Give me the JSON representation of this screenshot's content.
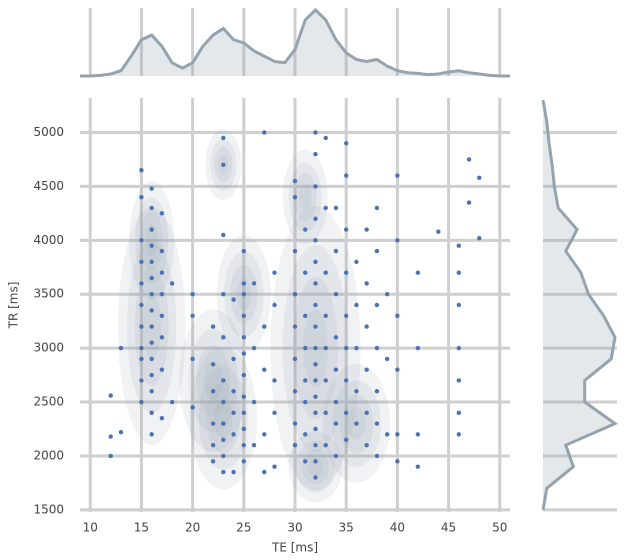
{
  "chart_data": {
    "type": "jointplot",
    "xlabel": "TE [ms]",
    "ylabel": "TR [ms]",
    "xlim": [
      9,
      51
    ],
    "ylim": [
      1480,
      5320
    ],
    "xticks": [
      10,
      15,
      20,
      25,
      30,
      35,
      40,
      45,
      50
    ],
    "yticks": [
      1500,
      2000,
      2500,
      3000,
      3500,
      4000,
      4500,
      5000
    ],
    "grid": true,
    "point_color": "#4c72b0",
    "kde_color": "#95a3ae",
    "x": [
      12,
      12,
      12,
      13,
      13,
      15,
      15,
      15,
      15,
      15,
      15,
      15,
      15,
      15,
      15,
      15,
      16,
      16,
      16,
      16,
      16,
      16,
      16,
      16,
      16,
      16,
      16,
      16,
      16,
      16,
      16,
      17,
      17,
      17,
      17,
      17,
      17,
      17,
      17,
      18,
      18,
      20,
      20,
      20,
      20,
      22,
      22,
      22,
      22,
      22,
      22,
      23,
      23,
      23,
      23,
      23,
      23,
      23,
      23,
      23,
      23,
      23,
      24,
      24,
      24,
      24,
      24,
      24,
      25,
      25,
      25,
      25,
      25,
      25,
      25,
      25,
      25,
      25,
      25,
      25,
      26,
      26,
      26,
      26,
      27,
      27,
      27,
      27,
      27,
      28,
      28,
      28,
      28,
      28,
      30,
      30,
      30,
      30,
      30,
      30,
      30,
      30,
      30,
      31,
      31,
      31,
      31,
      31,
      31,
      31,
      31,
      32,
      32,
      32,
      32,
      32,
      32,
      32,
      32,
      32,
      32,
      32,
      32,
      32,
      32,
      32,
      32,
      32,
      32,
      33,
      33,
      33,
      33,
      33,
      33,
      33,
      33,
      34,
      34,
      34,
      34,
      34,
      34,
      34,
      34,
      35,
      35,
      35,
      35,
      35,
      35,
      35,
      35,
      35,
      36,
      36,
      36,
      36,
      36,
      37,
      37,
      37,
      37,
      37,
      37,
      38,
      38,
      38,
      38,
      38,
      38,
      38,
      39,
      39,
      39,
      40,
      40,
      40,
      40,
      40,
      40,
      42,
      42,
      42,
      42,
      44,
      46,
      46,
      46,
      46,
      46,
      46,
      46,
      47,
      47,
      48,
      48
    ],
    "y": [
      2000,
      2180,
      2560,
      2220,
      3000,
      4650,
      4400,
      4000,
      3800,
      3600,
      3400,
      3200,
      3000,
      2900,
      2700,
      2500,
      4480,
      4300,
      4100,
      3950,
      3800,
      3650,
      3500,
      3350,
      3200,
      3050,
      2900,
      2750,
      2600,
      2400,
      2200,
      4250,
      3900,
      3700,
      3500,
      3300,
      3100,
      2800,
      2350,
      3600,
      2500,
      3500,
      3300,
      2900,
      2450,
      2300,
      2100,
      1950,
      2600,
      2850,
      3200,
      4950,
      4700,
      4050,
      3500,
      3100,
      2700,
      2500,
      2300,
      2150,
      2000,
      1850,
      2400,
      2200,
      2600,
      2900,
      3450,
      1850,
      3900,
      3600,
      3500,
      3300,
      3100,
      2950,
      2750,
      2550,
      2400,
      2250,
      2100,
      1950,
      3600,
      3000,
      2500,
      2100,
      5000,
      3200,
      2800,
      2200,
      1850,
      3700,
      3400,
      2700,
      2400,
      1900,
      4550,
      4400,
      3900,
      3500,
      3200,
      2900,
      2600,
      2300,
      2100,
      4100,
      3700,
      3300,
      3000,
      2700,
      2500,
      2200,
      1950,
      5000,
      4800,
      4500,
      4200,
      4000,
      3800,
      3600,
      3400,
      3200,
      3000,
      2850,
      2700,
      2550,
      2400,
      2250,
      2100,
      1950,
      1800,
      4950,
      4300,
      3700,
      3300,
      3000,
      2700,
      2400,
      2100,
      4300,
      3900,
      3500,
      3100,
      2800,
      2500,
      2300,
      2000,
      4900,
      4600,
      4100,
      3700,
      3300,
      3000,
      2700,
      2400,
      2150,
      3800,
      3400,
      3000,
      2600,
      2300,
      4100,
      3600,
      3200,
      2800,
      2400,
      2100,
      4300,
      3900,
      3400,
      3000,
      2600,
      2300,
      2000,
      3500,
      2900,
      2200,
      4600,
      4000,
      3300,
      2800,
      2200,
      1950,
      3700,
      3000,
      2200,
      1900,
      4080,
      3950,
      3700,
      3400,
      3000,
      2700,
      2400,
      2200,
      4750,
      4350,
      4580,
      4020
    ],
    "kde_clusters": [
      {
        "x": 16,
        "y": 4000,
        "sx": 1,
        "sy": 250
      },
      {
        "x": 16,
        "y": 3200,
        "sx": 1.5,
        "sy": 500
      },
      {
        "x": 23,
        "y": 4700,
        "sx": 0.8,
        "sy": 150
      },
      {
        "x": 25,
        "y": 3500,
        "sx": 1.2,
        "sy": 250
      },
      {
        "x": 23,
        "y": 2350,
        "sx": 1.5,
        "sy": 300
      },
      {
        "x": 22,
        "y": 2700,
        "sx": 1.5,
        "sy": 300
      },
      {
        "x": 32,
        "y": 3000,
        "sx": 2,
        "sy": 600
      },
      {
        "x": 31,
        "y": 4400,
        "sx": 1,
        "sy": 200
      },
      {
        "x": 32,
        "y": 1900,
        "sx": 1.2,
        "sy": 150
      },
      {
        "x": 36,
        "y": 2300,
        "sx": 1.5,
        "sy": 250
      }
    ],
    "top_kde": {
      "x": [
        9,
        10,
        11,
        12,
        13,
        14,
        15,
        16,
        17,
        18,
        19,
        20,
        21,
        22,
        23,
        24,
        25,
        26,
        27,
        28,
        29,
        30,
        31,
        32,
        33,
        34,
        35,
        36,
        37,
        38,
        39,
        40,
        41,
        42,
        43,
        44,
        45,
        46,
        47,
        48,
        49,
        50,
        51
      ],
      "density": [
        0,
        0,
        0.01,
        0.03,
        0.08,
        0.3,
        0.55,
        0.62,
        0.45,
        0.2,
        0.12,
        0.2,
        0.45,
        0.62,
        0.72,
        0.55,
        0.5,
        0.38,
        0.3,
        0.22,
        0.2,
        0.4,
        0.85,
        1.0,
        0.85,
        0.55,
        0.35,
        0.25,
        0.22,
        0.25,
        0.15,
        0.08,
        0.05,
        0.04,
        0.02,
        0.03,
        0.06,
        0.08,
        0.05,
        0.03,
        0.01,
        0,
        0
      ]
    },
    "right_kde": {
      "y": [
        1500,
        1700,
        1900,
        2100,
        2300,
        2500,
        2700,
        2900,
        3100,
        3300,
        3500,
        3700,
        3900,
        4100,
        4300,
        4500,
        4700,
        4900,
        5100,
        5300
      ],
      "density": [
        0,
        0.05,
        0.4,
        0.3,
        0.95,
        0.55,
        0.55,
        0.9,
        0.95,
        0.8,
        0.6,
        0.5,
        0.3,
        0.45,
        0.2,
        0.15,
        0.12,
        0.08,
        0.05,
        0
      ]
    }
  }
}
